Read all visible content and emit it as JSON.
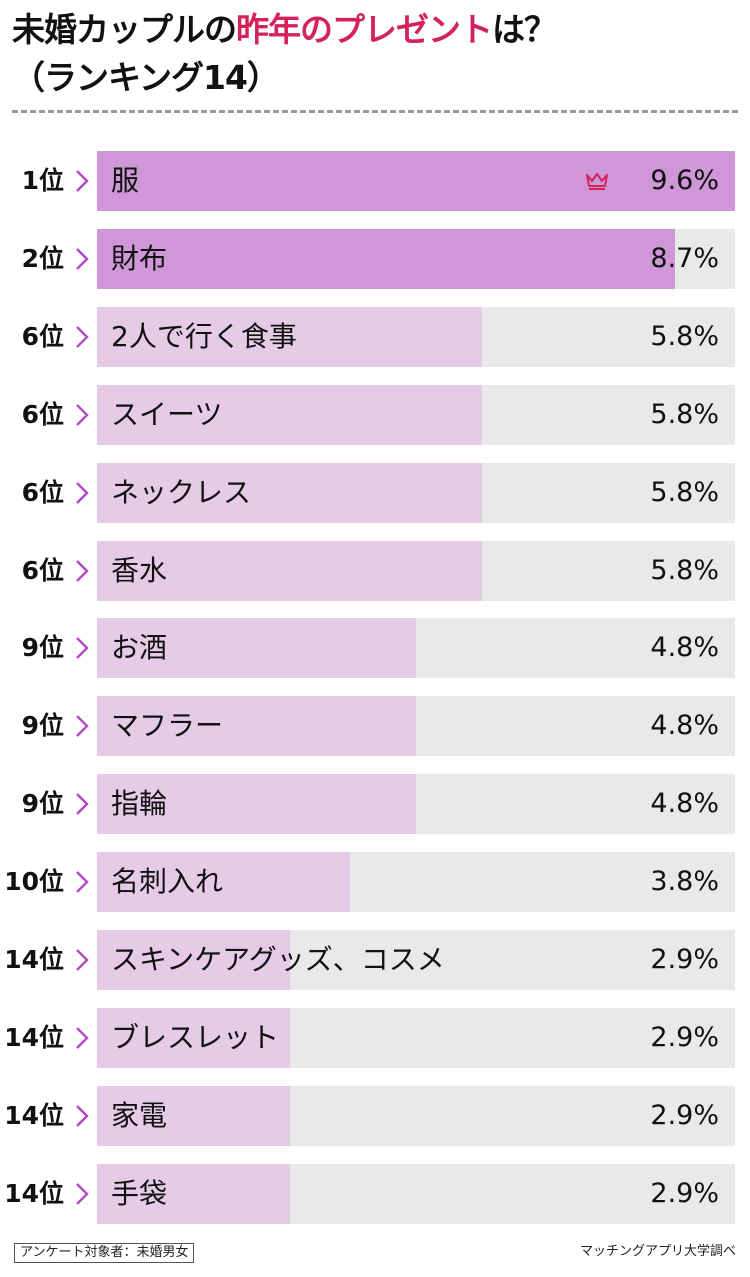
{
  "title": {
    "part1": "未婚カップルの",
    "accent": "昨年のプレゼント",
    "part2": "は？",
    "line2": "（ランキング14）"
  },
  "colors": {
    "accent": "#d4235b",
    "bar_top": "#cf96d8",
    "bar": "#e6cbe7",
    "track": "#e9e9e9",
    "chevron": "#b349c6"
  },
  "chart_data": {
    "type": "bar",
    "orientation": "horizontal",
    "max": 9.6,
    "items": [
      {
        "rank": "1位",
        "label": "服",
        "value": 9.6,
        "value_label": "9.6%",
        "crown": true
      },
      {
        "rank": "2位",
        "label": "財布",
        "value": 8.7,
        "value_label": "8.7%"
      },
      {
        "rank": "6位",
        "label": "2人で行く食事",
        "value": 5.8,
        "value_label": "5.8%"
      },
      {
        "rank": "6位",
        "label": "スイーツ",
        "value": 5.8,
        "value_label": "5.8%"
      },
      {
        "rank": "6位",
        "label": "ネックレス",
        "value": 5.8,
        "value_label": "5.8%"
      },
      {
        "rank": "6位",
        "label": "香水",
        "value": 5.8,
        "value_label": "5.8%"
      },
      {
        "rank": "9位",
        "label": "お酒",
        "value": 4.8,
        "value_label": "4.8%"
      },
      {
        "rank": "9位",
        "label": "マフラー",
        "value": 4.8,
        "value_label": "4.8%"
      },
      {
        "rank": "9位",
        "label": "指輪",
        "value": 4.8,
        "value_label": "4.8%"
      },
      {
        "rank": "10位",
        "label": "名刺入れ",
        "value": 3.8,
        "value_label": "3.8%"
      },
      {
        "rank": "14位",
        "label": "スキンケアグッズ、コスメ",
        "value": 2.9,
        "value_label": "2.9%"
      },
      {
        "rank": "14位",
        "label": "ブレスレット",
        "value": 2.9,
        "value_label": "2.9%"
      },
      {
        "rank": "14位",
        "label": "家電",
        "value": 2.9,
        "value_label": "2.9%"
      },
      {
        "rank": "14位",
        "label": "手袋",
        "value": 2.9,
        "value_label": "2.9%"
      }
    ]
  },
  "footer": {
    "survey": "アンケート対象者：未婚男女",
    "source": "マッチングアプリ大学調べ"
  }
}
